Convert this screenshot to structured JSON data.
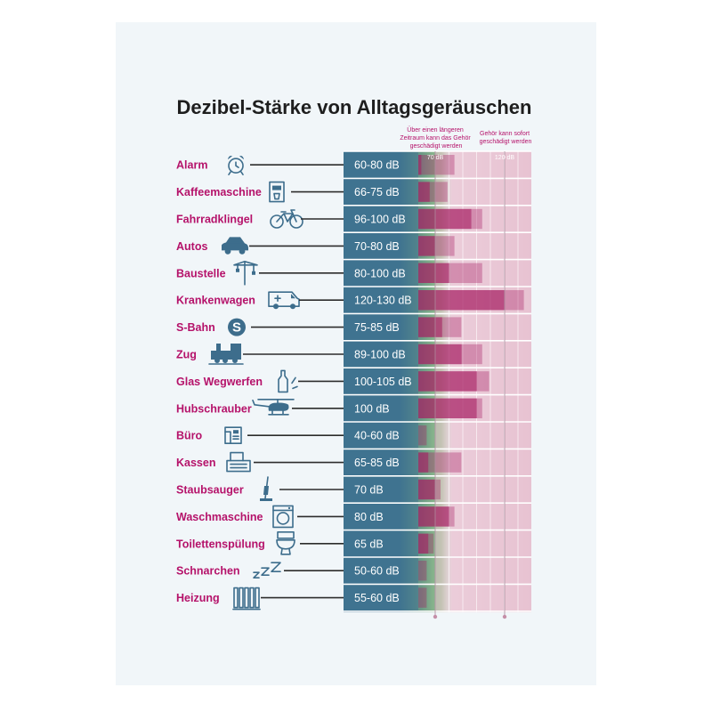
{
  "chart_data": {
    "type": "bar",
    "title": "Dezibel-Stärke von Alltagsgeräuschen",
    "annotations": {
      "long_term": "Über einen längeren Zeitraum kann das Gehör geschädigt werden",
      "immediate": "Gehör kann sofort geschädigt werden"
    },
    "ticks": [
      {
        "label": "70 dB",
        "value": 70
      },
      {
        "label": "120 dB",
        "value": 120
      }
    ],
    "xlim": [
      20,
      140
    ],
    "categories": [
      "Alarm",
      "Kaffeemaschine",
      "Fahrradklingel",
      "Autos",
      "Baustelle",
      "Krankenwagen",
      "S-Bahn",
      "Zug",
      "Glas Wegwerfen",
      "Hubschrauber",
      "Büro",
      "Kassen",
      "Staubsauger",
      "Waschmaschine",
      "Toilettenspülung",
      "Schnarchen",
      "Heizung"
    ],
    "value_labels": [
      "60-80 dB",
      "66-75 dB",
      "96-100 dB",
      "70-80 dB",
      "80-100 dB",
      "120-130 dB",
      "75-85 dB",
      "89-100 dB",
      "100-105 dB",
      "100 dB",
      "40-60 dB",
      "65-85 dB",
      "70 dB",
      "80 dB",
      "65 dB",
      "50-60 dB",
      "55-60 dB"
    ],
    "ranges": [
      [
        60,
        80
      ],
      [
        66,
        75
      ],
      [
        96,
        100
      ],
      [
        70,
        80
      ],
      [
        80,
        100
      ],
      [
        120,
        130
      ],
      [
        75,
        85
      ],
      [
        89,
        100
      ],
      [
        100,
        105
      ],
      [
        100,
        100
      ],
      [
        40,
        60
      ],
      [
        65,
        85
      ],
      [
        70,
        70
      ],
      [
        80,
        80
      ],
      [
        65,
        65
      ],
      [
        50,
        60
      ],
      [
        55,
        60
      ]
    ],
    "icons": [
      "alarm-clock-icon",
      "coffee-machine-icon",
      "bicycle-icon",
      "car-icon",
      "crane-icon",
      "ambulance-icon",
      "s-bahn-logo-icon",
      "train-icon",
      "bottle-icon",
      "helicopter-icon",
      "telephone-icon",
      "cash-register-icon",
      "vacuum-cleaner-icon",
      "washing-machine-icon",
      "toilet-icon",
      "snoring-zzz-icon",
      "radiator-icon"
    ],
    "colors": {
      "label": "#b5126a",
      "blue_band": "#3f7390",
      "green_band": "#79a883",
      "pink_band": "#e9c4d4",
      "magenta_bar": "#a51b61",
      "connector": "#2c2c2c",
      "icon": "#3d6d8c"
    }
  }
}
